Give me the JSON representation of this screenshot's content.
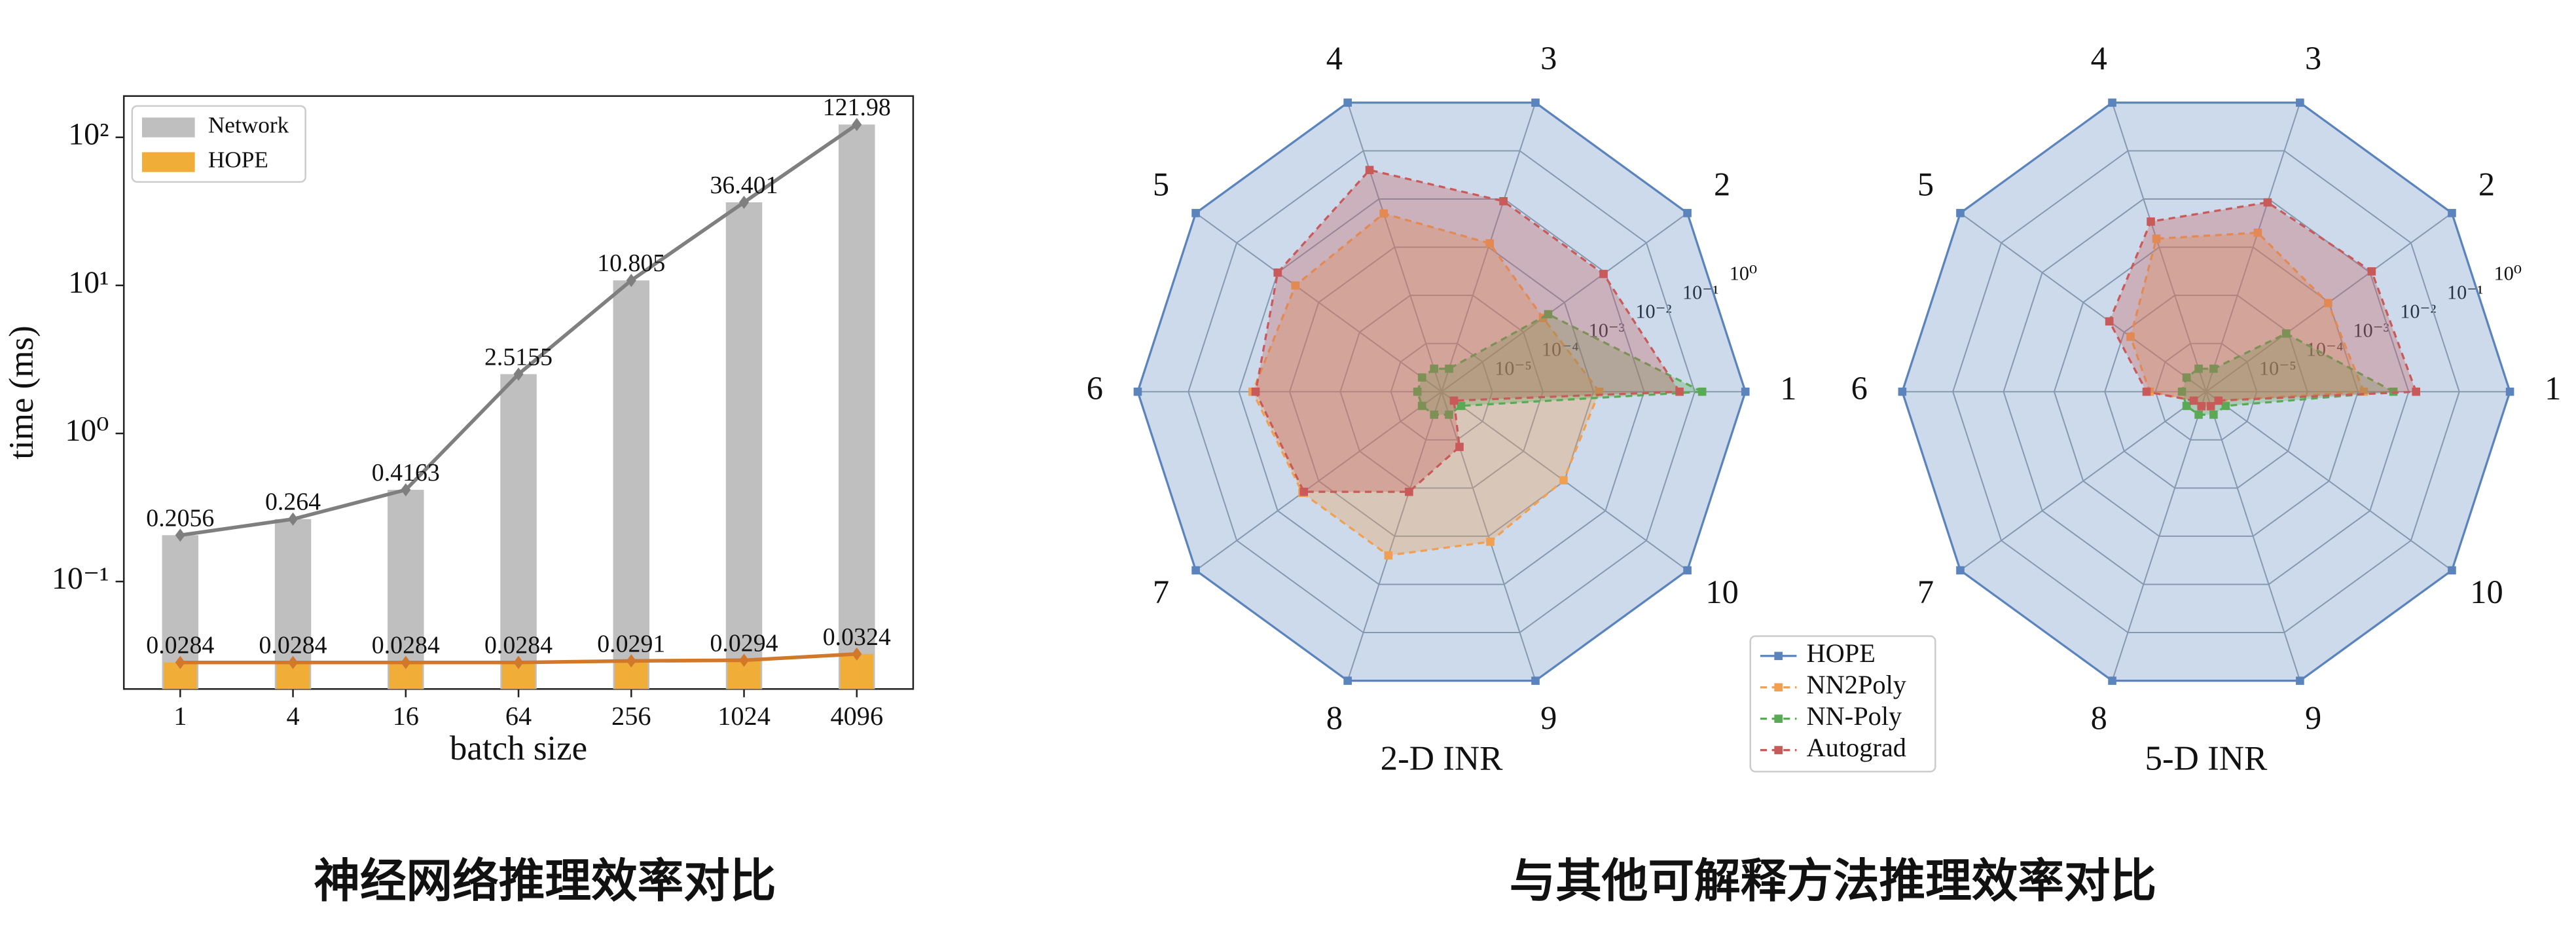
{
  "chart_data": [
    {
      "type": "bar",
      "ylabel": "time (ms)",
      "xlabel": "batch size",
      "categories": [
        "1",
        "4",
        "16",
        "64",
        "256",
        "1024",
        "4096"
      ],
      "log_y": true,
      "ylim": [
        0.0188,
        190
      ],
      "yticks": [
        {
          "value": 0.1,
          "label": "10⁻¹"
        },
        {
          "value": 1,
          "label": "10⁰"
        },
        {
          "value": 10,
          "label": "10¹"
        },
        {
          "value": 100,
          "label": "10²"
        }
      ],
      "grid": false,
      "legend": "upper left",
      "series": [
        {
          "name": "Network",
          "color": "#bfbfbf",
          "line_color": "#7f7f7f",
          "values": [
            0.2056,
            0.264,
            0.4163,
            2.5155,
            10.805,
            36.401,
            121.98
          ]
        },
        {
          "name": "HOPE",
          "color": "#f0ad38",
          "line_color": "#d2782a",
          "values": [
            0.0284,
            0.0284,
            0.0284,
            0.0284,
            0.0291,
            0.0294,
            0.0324
          ]
        }
      ]
    },
    {
      "type": "radar",
      "xlabel": "2-D INR",
      "categories": [
        "1",
        "2",
        "3",
        "4",
        "5",
        "6",
        "7",
        "8",
        "9",
        "10"
      ],
      "log_r": true,
      "rlim": [
        1e-06,
        1
      ],
      "rticks": [
        {
          "value": 1e-05,
          "label": "10⁻⁵"
        },
        {
          "value": 0.0001,
          "label": "10⁻⁴"
        },
        {
          "value": 0.001,
          "label": "10⁻³"
        },
        {
          "value": 0.01,
          "label": "10⁻²"
        },
        {
          "value": 0.1,
          "label": "10⁻¹"
        },
        {
          "value": 1,
          "label": "10⁰"
        }
      ],
      "legend": "lower right",
      "series": [
        {
          "name": "HOPE",
          "color": "#5b84bd",
          "values": [
            1,
            1,
            1,
            1,
            1,
            1,
            1,
            1,
            1,
            1
          ]
        },
        {
          "name": "NN2Poly",
          "color": "#f0a050",
          "values": [
            0.0013,
            0.0003,
            0.0012,
            0.005,
            0.0037,
            0.0054,
            0.0025,
            0.0025,
            0.0013,
            0.00095
          ]
        },
        {
          "name": "NN-Poly",
          "color": "#5aaa55",
          "values": [
            0.14,
            0.0004,
            3e-06,
            3e-06,
            3e-06,
            3e-06,
            3e-06,
            3e-06,
            3e-06,
            3e-06
          ]
        },
        {
          "name": "Autograd",
          "color": "#c85a5a",
          "values": [
            0.05,
            0.009,
            0.009,
            0.04,
            0.01,
            0.0047,
            0.0023,
            0.00012,
            1.4e-05,
            2e-06
          ]
        }
      ]
    },
    {
      "type": "radar",
      "xlabel": "5-D INR",
      "categories": [
        "1",
        "2",
        "3",
        "4",
        "5",
        "6",
        "7",
        "8",
        "9",
        "10"
      ],
      "log_r": true,
      "rlim": [
        1e-06,
        1
      ],
      "rticks": [
        {
          "value": 1e-05,
          "label": "10⁻⁵"
        },
        {
          "value": 0.0001,
          "label": "10⁻⁴"
        },
        {
          "value": 0.001,
          "label": "10⁻³"
        },
        {
          "value": 0.01,
          "label": "10⁻²"
        },
        {
          "value": 0.1,
          "label": "10⁻¹"
        },
        {
          "value": 1,
          "label": "10⁰"
        }
      ],
      "series": [
        {
          "color": "#5b84bd",
          "values": [
            1,
            1,
            1,
            1,
            1,
            1,
            1,
            1,
            1,
            1
          ]
        },
        {
          "color": "#f0a050",
          "values": [
            0.0013,
            0.00095,
            0.002,
            0.0015,
            7e-05,
            1.3e-05,
            2e-06,
            2e-06,
            2e-06,
            2e-06
          ]
        },
        {
          "color": "#5aaa55",
          "values": [
            0.005,
            9e-05,
            3e-06,
            3e-06,
            3e-06,
            3e-06,
            3e-06,
            3e-06,
            3e-06,
            3e-06
          ]
        },
        {
          "color": "#c85a5a",
          "values": [
            0.014,
            0.011,
            0.0085,
            0.0034,
            0.00023,
            1.5e-05,
            2e-06,
            2e-06,
            2e-06,
            2e-06
          ]
        }
      ]
    }
  ],
  "captions": [
    "神经网络推理效率对比",
    "与其他可解释方法推理效率对比"
  ]
}
